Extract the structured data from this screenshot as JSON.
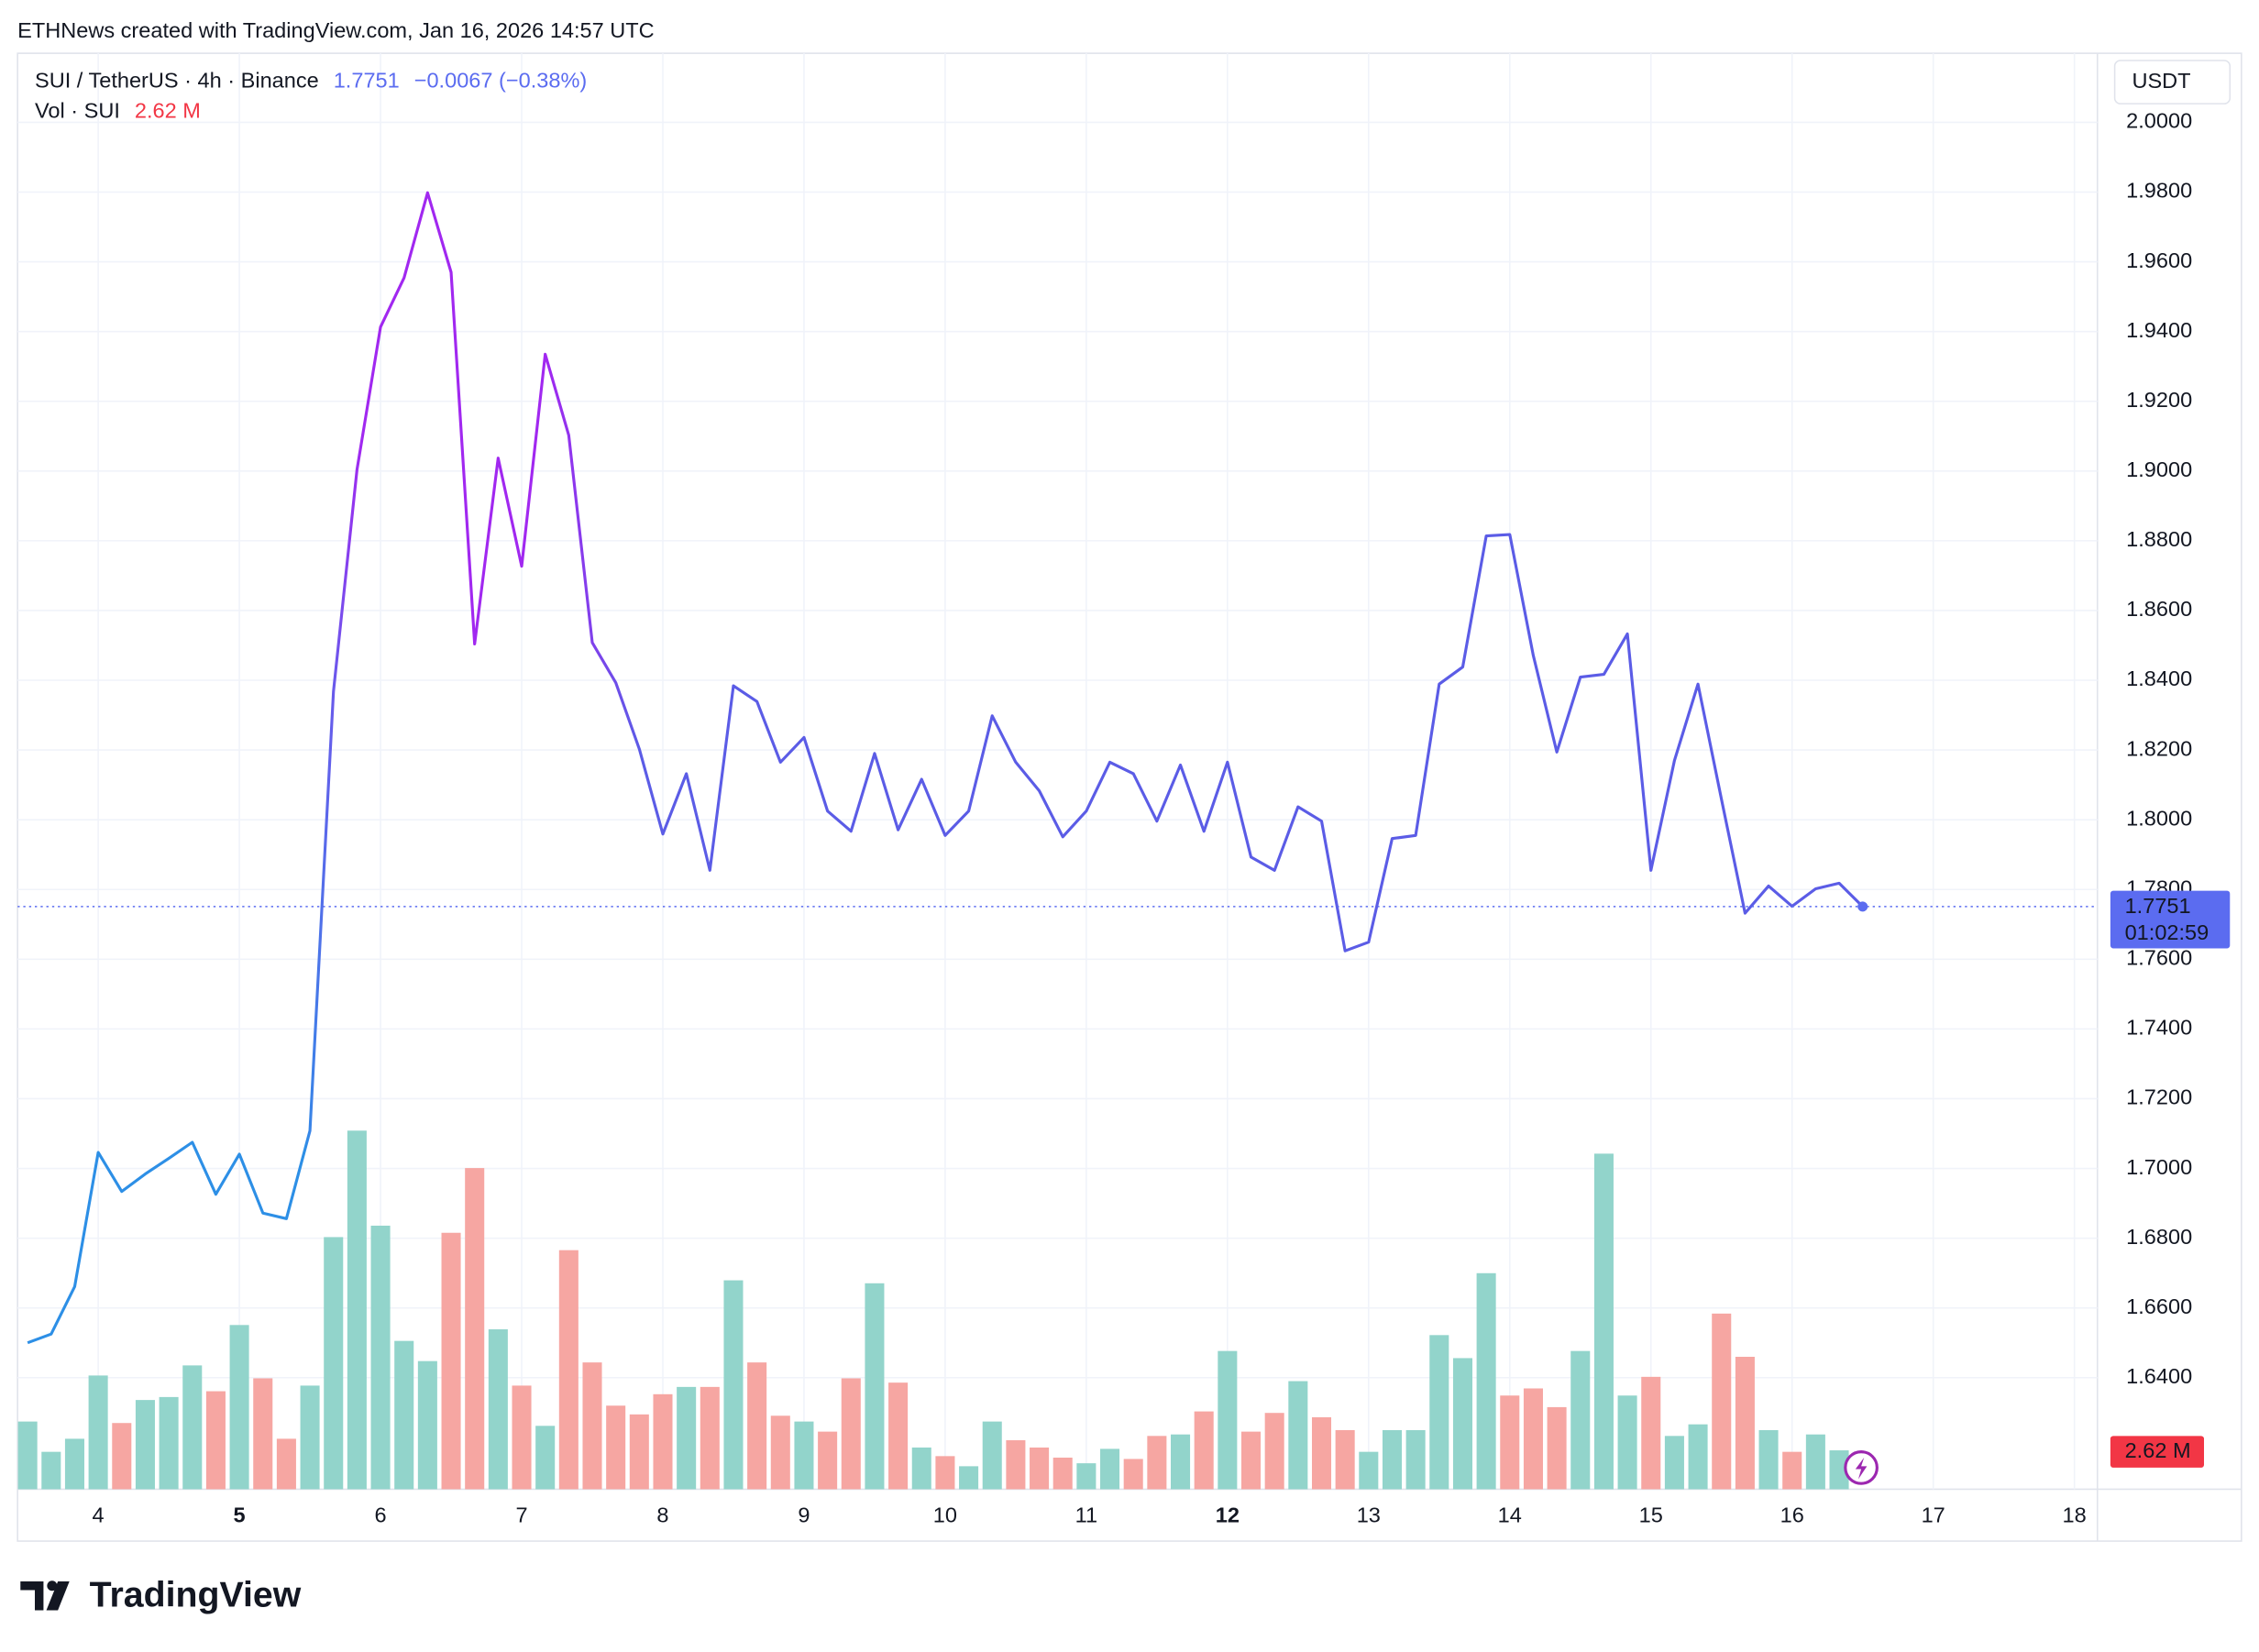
{
  "watermark": "ETHNews created with TradingView.com, Jan 16, 2026 14:57 UTC",
  "footer": {
    "logo_text": "TradingView"
  },
  "chart_data": {
    "type": "line",
    "title": "SUI / TetherUS · 4h · Binance",
    "change": "−0.0067 (−0.38%)",
    "volume_title": "Vol · SUI",
    "currency": "USDT",
    "countdown": "01:02:59",
    "xlim": [
      3.4286,
      18.163
    ],
    "xticks": [
      4,
      5,
      6,
      7,
      8,
      9,
      10,
      11,
      12,
      13,
      14,
      15,
      16,
      17,
      18
    ],
    "xtick_bold": [
      false,
      true,
      false,
      false,
      false,
      false,
      false,
      false,
      true,
      false,
      false,
      false,
      false,
      false,
      false
    ],
    "ylim": [
      1.608,
      2.0198
    ],
    "yticks": [
      {
        "value": 1.64,
        "label": "1.6400"
      },
      {
        "value": 1.66,
        "label": "1.6600"
      },
      {
        "value": 1.68,
        "label": "1.6800"
      },
      {
        "value": 1.7,
        "label": "1.7000"
      },
      {
        "value": 1.72,
        "label": "1.7200"
      },
      {
        "value": 1.74,
        "label": "1.7400"
      },
      {
        "value": 1.76,
        "label": "1.7600"
      },
      {
        "value": 1.78,
        "label": "1.7800"
      },
      {
        "value": 1.8,
        "label": "1.8000"
      },
      {
        "value": 1.82,
        "label": "1.8200"
      },
      {
        "value": 1.84,
        "label": "1.8400"
      },
      {
        "value": 1.86,
        "label": "1.8600"
      },
      {
        "value": 1.88,
        "label": "1.8800"
      },
      {
        "value": 1.9,
        "label": "1.9000"
      },
      {
        "value": 1.92,
        "label": "1.9200"
      },
      {
        "value": 1.94,
        "label": "1.9400"
      },
      {
        "value": 1.96,
        "label": "1.9600"
      },
      {
        "value": 1.98,
        "label": "1.9800"
      },
      {
        "value": 2.0,
        "label": "2.0000"
      }
    ],
    "grid": true,
    "price": {
      "line_colors": [
        "#2d8fe6",
        "#a128f0",
        "#5b5ce6"
      ],
      "x": [
        3.5,
        3.6667,
        3.8333,
        4,
        4.1667,
        4.3333,
        4.5,
        4.6667,
        4.8333,
        5,
        5.1667,
        5.3333,
        5.5,
        5.6667,
        5.8333,
        6,
        6.1667,
        6.3333,
        6.5,
        6.6667,
        6.8333,
        7,
        7.1667,
        7.3333,
        7.5,
        7.6667,
        7.8333,
        8,
        8.1667,
        8.3333,
        8.5,
        8.6667,
        8.8333,
        9,
        9.1667,
        9.3333,
        9.5,
        9.6667,
        9.8333,
        10,
        10.1667,
        10.3333,
        10.5,
        10.6667,
        10.8333,
        11,
        11.1667,
        11.3333,
        11.5,
        11.6667,
        11.8333,
        12,
        12.1667,
        12.3333,
        12.5,
        12.6667,
        12.8333,
        13,
        13.1667,
        13.3333,
        13.5,
        13.6667,
        13.8333,
        14,
        14.1667,
        14.3333,
        14.5,
        14.6667,
        14.8333,
        15,
        15.1667,
        15.3333,
        15.5,
        15.6667,
        15.8333,
        16,
        16.1667,
        16.3333,
        16.5
      ],
      "values": [
        1.65,
        1.6525,
        1.6661,
        1.7046,
        1.6934,
        1.6984,
        1.7029,
        1.7075,
        1.6926,
        1.7041,
        1.6872,
        1.6856,
        1.7108,
        1.8368,
        1.9004,
        1.9413,
        1.9554,
        1.9798,
        1.957,
        1.8504,
        1.9037,
        1.8727,
        1.9335,
        1.9103,
        1.8508,
        1.8393,
        1.8203,
        1.7959,
        1.8132,
        1.7855,
        1.8384,
        1.8339,
        1.8165,
        1.8236,
        1.8025,
        1.7967,
        1.819,
        1.7971,
        1.8116,
        1.7955,
        1.8025,
        1.8298,
        1.8165,
        1.8083,
        1.7951,
        1.8025,
        1.8165,
        1.8132,
        1.7996,
        1.8157,
        1.7967,
        1.8165,
        1.7893,
        1.7855,
        1.8037,
        1.7996,
        1.7624,
        1.7649,
        1.7946,
        1.7955,
        1.8389,
        1.8438,
        1.8814,
        1.8818,
        1.8471,
        1.8194,
        1.8409,
        1.8417,
        1.8533,
        1.7855,
        1.817,
        1.8389,
        1.8058,
        1.7732,
        1.781,
        1.7752,
        1.7802,
        1.7818,
        1.7751
      ],
      "last_color": "#5b6cf0"
    },
    "volume": {
      "vol_lim": [
        0,
        96.7
      ],
      "last_label": "2.62 M",
      "label_color": "#f23645",
      "x": [
        3.5,
        3.6667,
        3.8333,
        4,
        4.1667,
        4.3333,
        4.5,
        4.6667,
        4.8333,
        5,
        5.1667,
        5.3333,
        5.5,
        5.6667,
        5.8333,
        6,
        6.1667,
        6.3333,
        6.5,
        6.6667,
        6.8333,
        7,
        7.1667,
        7.3333,
        7.5,
        7.6667,
        7.8333,
        8,
        8.1667,
        8.3333,
        8.5,
        8.6667,
        8.8333,
        9,
        9.1667,
        9.3333,
        9.5,
        9.6667,
        9.8333,
        10,
        10.1667,
        10.3333,
        10.5,
        10.6667,
        10.8333,
        11,
        11.1667,
        11.3333,
        11.5,
        11.6667,
        11.8333,
        12,
        12.1667,
        12.3333,
        12.5,
        12.6667,
        12.8333,
        13,
        13.1667,
        13.3333,
        13.5,
        13.6667,
        13.8333,
        14,
        14.1667,
        14.3333,
        14.5,
        14.6667,
        14.8333,
        15,
        15.1667,
        15.3333,
        15.5,
        15.6667,
        15.8333,
        16,
        16.1667,
        16.3333
      ],
      "values": [
        4.56,
        2.52,
        3.4,
        7.66,
        4.46,
        6.01,
        6.21,
        8.34,
        6.6,
        11.06,
        7.47,
        3.4,
        6.98,
        16.98,
        24.15,
        17.75,
        9.99,
        8.63,
        17.27,
        21.63,
        10.77,
        6.98,
        4.27,
        16.1,
        8.54,
        5.63,
        5.04,
        6.4,
        6.89,
        6.89,
        14.07,
        8.54,
        4.95,
        4.56,
        3.88,
        7.47,
        13.87,
        7.18,
        2.81,
        2.23,
        1.55,
        4.56,
        3.3,
        2.81,
        2.13,
        1.75,
        2.72,
        2.04,
        3.59,
        3.69,
        5.24,
        9.31,
        3.88,
        5.14,
        7.28,
        4.85,
        3.98,
        2.52,
        3.98,
        3.98,
        10.38,
        8.83,
        14.55,
        6.31,
        6.79,
        5.53,
        9.31,
        22.6,
        6.31,
        7.57,
        3.59,
        4.37,
        11.83,
        8.92,
        3.98,
        2.52,
        3.69,
        2.62
      ],
      "colors": [
        "#92d4cb",
        "#92d4cb",
        "#92d4cb",
        "#92d4cb",
        "#f6a6a2",
        "#92d4cb",
        "#92d4cb",
        "#92d4cb",
        "#f6a6a2",
        "#92d4cb",
        "#f6a6a2",
        "#f6a6a2",
        "#92d4cb",
        "#92d4cb",
        "#92d4cb",
        "#92d4cb",
        "#92d4cb",
        "#92d4cb",
        "#f6a6a2",
        "#f6a6a2",
        "#92d4cb",
        "#f6a6a2",
        "#92d4cb",
        "#f6a6a2",
        "#f6a6a2",
        "#f6a6a2",
        "#f6a6a2",
        "#f6a6a2",
        "#92d4cb",
        "#f6a6a2",
        "#92d4cb",
        "#f6a6a2",
        "#f6a6a2",
        "#92d4cb",
        "#f6a6a2",
        "#f6a6a2",
        "#92d4cb",
        "#f6a6a2",
        "#92d4cb",
        "#f6a6a2",
        "#92d4cb",
        "#92d4cb",
        "#f6a6a2",
        "#f6a6a2",
        "#f6a6a2",
        "#92d4cb",
        "#92d4cb",
        "#f6a6a2",
        "#f6a6a2",
        "#92d4cb",
        "#f6a6a2",
        "#92d4cb",
        "#f6a6a2",
        "#f6a6a2",
        "#92d4cb",
        "#f6a6a2",
        "#f6a6a2",
        "#92d4cb",
        "#92d4cb",
        "#92d4cb",
        "#92d4cb",
        "#92d4cb",
        "#92d4cb",
        "#f6a6a2",
        "#f6a6a2",
        "#f6a6a2",
        "#92d4cb",
        "#92d4cb",
        "#92d4cb",
        "#f6a6a2",
        "#92d4cb",
        "#92d4cb",
        "#f6a6a2",
        "#f6a6a2",
        "#92d4cb",
        "#f6a6a2",
        "#92d4cb",
        "#92d4cb"
      ]
    }
  }
}
